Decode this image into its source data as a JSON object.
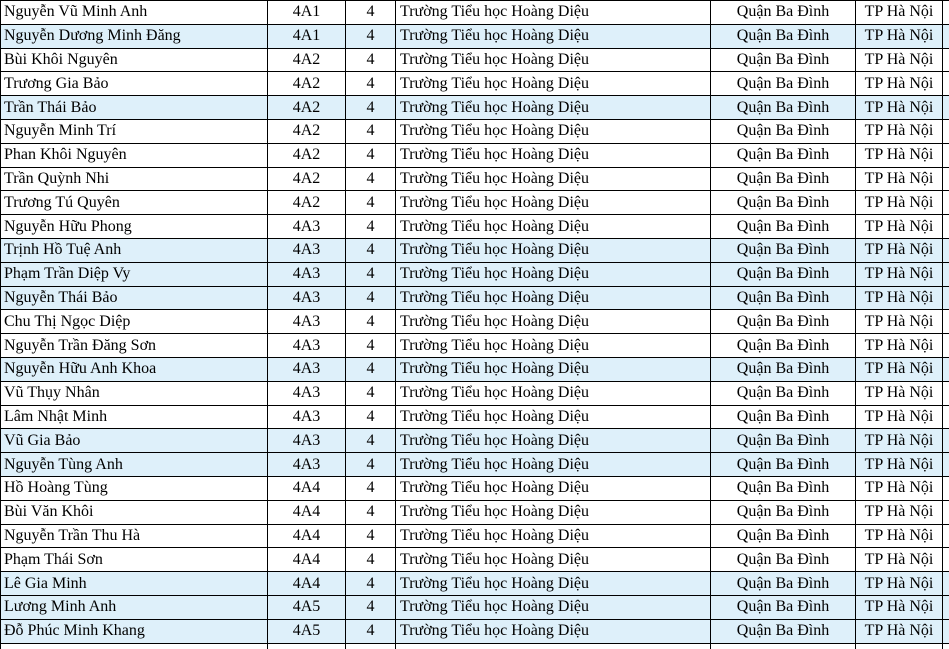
{
  "colors": {
    "row_highlight": "#DEF0FA",
    "row_default": "#FFFFFF",
    "border": "#000000",
    "text": "#000000"
  },
  "table": {
    "columns": [
      {
        "key": "name",
        "align": "left"
      },
      {
        "key": "class",
        "align": "center"
      },
      {
        "key": "grade",
        "align": "center"
      },
      {
        "key": "school",
        "align": "left"
      },
      {
        "key": "district",
        "align": "center"
      },
      {
        "key": "city",
        "align": "center"
      }
    ],
    "rows": [
      {
        "name": "Nguyễn Vũ Minh Anh",
        "class": "4A1",
        "grade": "4",
        "school": "Trường Tiểu học Hoàng Diệu",
        "district": "Quận Ba Đình",
        "city": "TP Hà Nội",
        "highlighted": false
      },
      {
        "name": "Nguyễn Dương Minh Đăng",
        "class": "4A1",
        "grade": "4",
        "school": "Trường Tiểu học Hoàng Diệu",
        "district": "Quận Ba Đình",
        "city": "TP Hà Nội",
        "highlighted": true
      },
      {
        "name": "Bùi Khôi Nguyên",
        "class": "4A2",
        "grade": "4",
        "school": "Trường Tiểu học Hoàng Diệu",
        "district": "Quận Ba Đình",
        "city": "TP Hà Nội",
        "highlighted": false
      },
      {
        "name": "Trương Gia Bảo",
        "class": "4A2",
        "grade": "4",
        "school": "Trường Tiểu học Hoàng Diệu",
        "district": "Quận Ba Đình",
        "city": "TP Hà Nội",
        "highlighted": false
      },
      {
        "name": "Trần Thái Bảo",
        "class": "4A2",
        "grade": "4",
        "school": "Trường Tiểu học Hoàng Diệu",
        "district": "Quận Ba Đình",
        "city": "TP Hà Nội",
        "highlighted": true
      },
      {
        "name": "Nguyễn Minh Trí",
        "class": "4A2",
        "grade": "4",
        "school": "Trường Tiểu học Hoàng Diệu",
        "district": "Quận Ba Đình",
        "city": "TP Hà Nội",
        "highlighted": false
      },
      {
        "name": "Phan Khôi Nguyên",
        "class": "4A2",
        "grade": "4",
        "school": "Trường Tiểu học Hoàng Diệu",
        "district": "Quận Ba Đình",
        "city": "TP Hà Nội",
        "highlighted": false
      },
      {
        "name": "Trần Quỳnh Nhi",
        "class": "4A2",
        "grade": "4",
        "school": "Trường Tiểu học Hoàng Diệu",
        "district": "Quận Ba Đình",
        "city": "TP Hà Nội",
        "highlighted": false
      },
      {
        "name": "Trương Tú Quyên",
        "class": "4A2",
        "grade": "4",
        "school": "Trường Tiểu học Hoàng Diệu",
        "district": "Quận Ba Đình",
        "city": "TP Hà Nội",
        "highlighted": false
      },
      {
        "name": "Nguyễn Hữu Phong",
        "class": "4A3",
        "grade": "4",
        "school": "Trường Tiểu học Hoàng Diệu",
        "district": "Quận Ba Đình",
        "city": "TP Hà Nội",
        "highlighted": false
      },
      {
        "name": "Trịnh Hồ Tuệ Anh",
        "class": "4A3",
        "grade": "4",
        "school": "Trường Tiểu học Hoàng Diệu",
        "district": "Quận Ba Đình",
        "city": "TP Hà Nội",
        "highlighted": true
      },
      {
        "name": "Phạm Trần Diệp Vy",
        "class": "4A3",
        "grade": "4",
        "school": "Trường Tiểu học Hoàng Diệu",
        "district": "Quận Ba Đình",
        "city": "TP Hà Nội",
        "highlighted": true
      },
      {
        "name": "Nguyễn Thái Bảo",
        "class": "4A3",
        "grade": "4",
        "school": "Trường Tiểu học Hoàng Diệu",
        "district": "Quận Ba Đình",
        "city": "TP Hà Nội",
        "highlighted": true
      },
      {
        "name": "Chu Thị Ngọc Diệp",
        "class": "4A3",
        "grade": "4",
        "school": "Trường Tiểu học Hoàng Diệu",
        "district": "Quận Ba Đình",
        "city": "TP Hà Nội",
        "highlighted": false
      },
      {
        "name": "Nguyễn Trần Đăng Sơn",
        "class": "4A3",
        "grade": "4",
        "school": "Trường Tiểu học Hoàng Diệu",
        "district": "Quận Ba Đình",
        "city": "TP Hà Nội",
        "highlighted": false
      },
      {
        "name": "Nguyễn Hữu Anh Khoa",
        "class": "4A3",
        "grade": "4",
        "school": "Trường Tiểu học Hoàng Diệu",
        "district": "Quận Ba Đình",
        "city": "TP Hà Nội",
        "highlighted": true
      },
      {
        "name": "Vũ Thụy Nhân",
        "class": "4A3",
        "grade": "4",
        "school": "Trường Tiểu học Hoàng Diệu",
        "district": "Quận Ba Đình",
        "city": "TP Hà Nội",
        "highlighted": false
      },
      {
        "name": "Lâm Nhật Minh",
        "class": "4A3",
        "grade": "4",
        "school": "Trường Tiểu học Hoàng Diệu",
        "district": "Quận Ba Đình",
        "city": "TP Hà Nội",
        "highlighted": false
      },
      {
        "name": "Vũ Gia Bảo",
        "class": "4A3",
        "grade": "4",
        "school": "Trường Tiểu học Hoàng Diệu",
        "district": "Quận Ba Đình",
        "city": "TP Hà Nội",
        "highlighted": true
      },
      {
        "name": "Nguyễn Tùng Anh",
        "class": "4A3",
        "grade": "4",
        "school": "Trường Tiểu học Hoàng Diệu",
        "district": "Quận Ba Đình",
        "city": "TP Hà Nội",
        "highlighted": true
      },
      {
        "name": "Hồ Hoàng Tùng",
        "class": "4A4",
        "grade": "4",
        "school": "Trường Tiểu học Hoàng Diệu",
        "district": "Quận Ba Đình",
        "city": "TP Hà Nội",
        "highlighted": false
      },
      {
        "name": "Bùi Văn Khôi",
        "class": "4A4",
        "grade": "4",
        "school": "Trường Tiểu học Hoàng Diệu",
        "district": "Quận Ba Đình",
        "city": "TP Hà Nội",
        "highlighted": false
      },
      {
        "name": "Nguyễn Trần Thu Hà",
        "class": "4A4",
        "grade": "4",
        "school": "Trường Tiểu học Hoàng Diệu",
        "district": "Quận Ba Đình",
        "city": "TP Hà Nội",
        "highlighted": false
      },
      {
        "name": "Phạm Thái Sơn",
        "class": "4A4",
        "grade": "4",
        "school": "Trường Tiểu học Hoàng Diệu",
        "district": "Quận Ba Đình",
        "city": "TP Hà Nội",
        "highlighted": false
      },
      {
        "name": "Lê Gia Minh",
        "class": "4A4",
        "grade": "4",
        "school": "Trường Tiểu học Hoàng Diệu",
        "district": "Quận Ba Đình",
        "city": "TP Hà Nội",
        "highlighted": true
      },
      {
        "name": "Lương Minh Anh",
        "class": "4A5",
        "grade": "4",
        "school": "Trường Tiểu học Hoàng Diệu",
        "district": "Quận Ba Đình",
        "city": "TP Hà Nội",
        "highlighted": true
      },
      {
        "name": "Đỗ Phúc Minh Khang",
        "class": "4A5",
        "grade": "4",
        "school": "Trường Tiểu học Hoàng Diệu",
        "district": "Quận Ba Đình",
        "city": "TP Hà Nội",
        "highlighted": true
      }
    ]
  }
}
